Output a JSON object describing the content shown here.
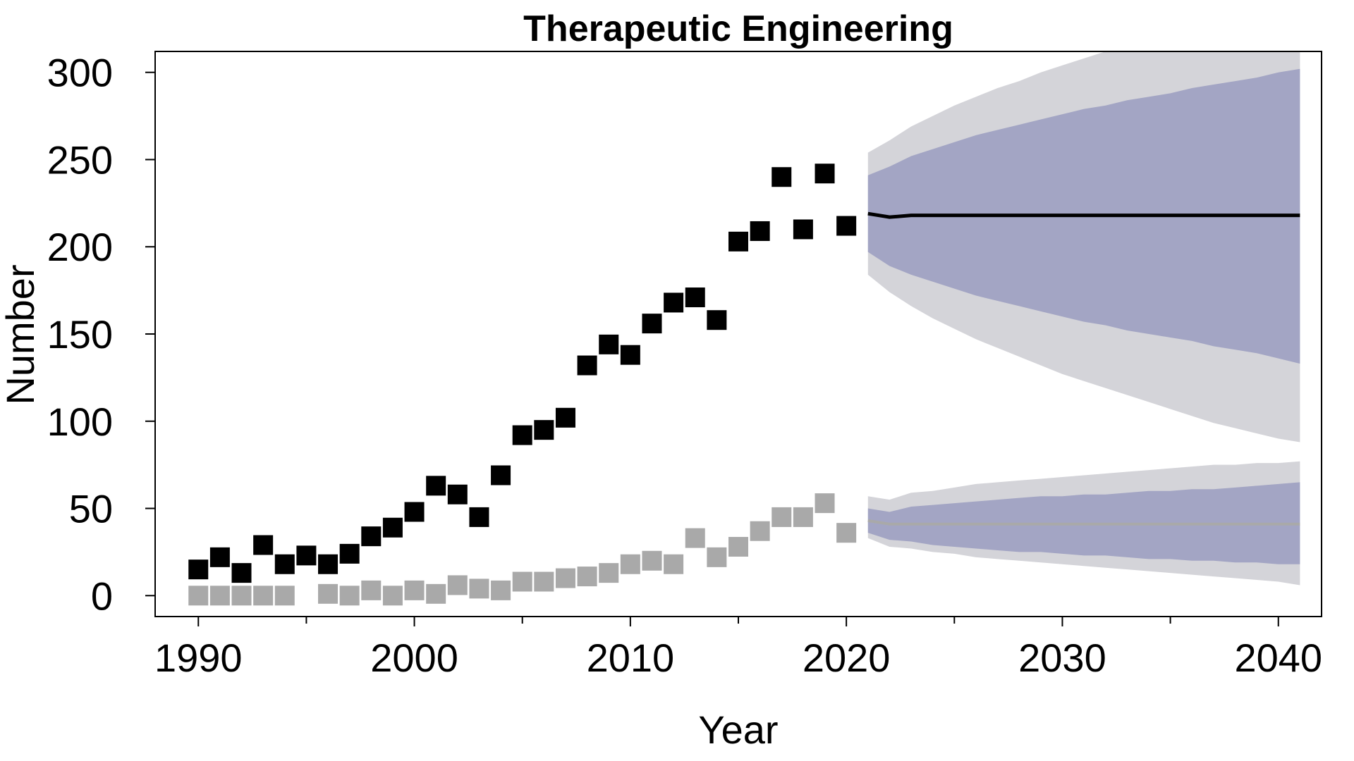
{
  "chart_data": {
    "type": "scatter",
    "title": "Therapeutic Engineering",
    "xlabel": "Year",
    "ylabel": "Number",
    "xlim": [
      1988,
      2042
    ],
    "ylim": [
      -12,
      312
    ],
    "xticks": [
      1990,
      2000,
      2010,
      2020,
      2030,
      2040
    ],
    "xticks_minor": [
      1995,
      2005,
      2015,
      2025,
      2035
    ],
    "yticks": [
      0,
      50,
      100,
      150,
      200,
      250,
      300
    ],
    "grid": false,
    "legend": "none",
    "colors": {
      "series_total": "#000000",
      "series_subset": "#a9a9a9",
      "band_outer": "#d4d4d9",
      "band_inner": "#a3a5c4",
      "forecast_total": "#000000",
      "forecast_subset": "#a9a9a9"
    },
    "series": [
      {
        "marker": "square",
        "color": "#000000",
        "points": [
          [
            1990,
            15
          ],
          [
            1991,
            22
          ],
          [
            1992,
            13
          ],
          [
            1993,
            29
          ],
          [
            1994,
            18
          ],
          [
            1995,
            23
          ],
          [
            1996,
            18
          ],
          [
            1997,
            24
          ],
          [
            1998,
            34
          ],
          [
            1999,
            39
          ],
          [
            2000,
            48
          ],
          [
            2001,
            63
          ],
          [
            2002,
            58
          ],
          [
            2003,
            45
          ],
          [
            2004,
            69
          ],
          [
            2005,
            92
          ],
          [
            2006,
            95
          ],
          [
            2007,
            102
          ],
          [
            2008,
            132
          ],
          [
            2009,
            144
          ],
          [
            2010,
            138
          ],
          [
            2011,
            156
          ],
          [
            2012,
            168
          ],
          [
            2013,
            171
          ],
          [
            2014,
            158
          ],
          [
            2015,
            203
          ],
          [
            2016,
            209
          ],
          [
            2017,
            240
          ],
          [
            2018,
            210
          ],
          [
            2019,
            242
          ],
          [
            2020,
            212
          ]
        ]
      },
      {
        "marker": "square",
        "color": "#a9a9a9",
        "points": [
          [
            1990,
            0
          ],
          [
            1991,
            0
          ],
          [
            1992,
            0
          ],
          [
            1993,
            0
          ],
          [
            1994,
            0
          ],
          [
            1996,
            1
          ],
          [
            1997,
            0
          ],
          [
            1998,
            3
          ],
          [
            1999,
            0
          ],
          [
            2000,
            3
          ],
          [
            2001,
            1
          ],
          [
            2002,
            6
          ],
          [
            2003,
            4
          ],
          [
            2004,
            3
          ],
          [
            2005,
            8
          ],
          [
            2006,
            8
          ],
          [
            2007,
            10
          ],
          [
            2008,
            11
          ],
          [
            2009,
            13
          ],
          [
            2010,
            18
          ],
          [
            2011,
            20
          ],
          [
            2012,
            18
          ],
          [
            2013,
            33
          ],
          [
            2014,
            22
          ],
          [
            2015,
            28
          ],
          [
            2016,
            37
          ],
          [
            2017,
            45
          ],
          [
            2018,
            45
          ],
          [
            2019,
            53
          ],
          [
            2020,
            36
          ]
        ]
      }
    ],
    "forecasts": [
      {
        "line_color": "#000000",
        "x": [
          2021,
          2022,
          2023,
          2024,
          2025,
          2026,
          2027,
          2028,
          2029,
          2030,
          2031,
          2032,
          2033,
          2034,
          2035,
          2036,
          2037,
          2038,
          2039,
          2040,
          2041
        ],
        "mean": [
          219,
          217,
          218,
          218,
          218,
          218,
          218,
          218,
          218,
          218,
          218,
          218,
          218,
          218,
          218,
          218,
          218,
          218,
          218,
          218,
          218
        ],
        "inner_upper": [
          241,
          246,
          252,
          256,
          260,
          264,
          267,
          270,
          273,
          276,
          279,
          281,
          284,
          286,
          288,
          291,
          293,
          295,
          297,
          300,
          302
        ],
        "inner_lower": [
          197,
          189,
          184,
          180,
          176,
          172,
          169,
          166,
          163,
          160,
          157,
          155,
          152,
          150,
          148,
          146,
          143,
          141,
          139,
          136,
          133
        ],
        "outer_upper": [
          254,
          261,
          269,
          275,
          281,
          286,
          291,
          295,
          300,
          304,
          308,
          312,
          315,
          319,
          322,
          325,
          328,
          331,
          334,
          337,
          340
        ],
        "outer_lower": [
          184,
          174,
          166,
          159,
          153,
          147,
          142,
          137,
          132,
          127,
          123,
          119,
          115,
          111,
          107,
          103,
          99,
          96,
          93,
          90,
          88
        ]
      },
      {
        "line_color": "#a9a9a9",
        "x": [
          2021,
          2022,
          2023,
          2024,
          2025,
          2026,
          2027,
          2028,
          2029,
          2030,
          2031,
          2032,
          2033,
          2034,
          2035,
          2036,
          2037,
          2038,
          2039,
          2040,
          2041
        ],
        "mean": [
          43,
          41,
          41,
          41,
          41,
          41,
          41,
          41,
          41,
          41,
          41,
          41,
          41,
          41,
          41,
          41,
          41,
          41,
          41,
          41,
          41
        ],
        "inner_upper": [
          50,
          48,
          51,
          52,
          53,
          54,
          55,
          56,
          57,
          57,
          58,
          58,
          59,
          60,
          60,
          61,
          61,
          62,
          63,
          64,
          65
        ],
        "inner_lower": [
          36,
          32,
          31,
          29,
          28,
          27,
          26,
          25,
          25,
          24,
          23,
          23,
          22,
          21,
          21,
          20,
          20,
          19,
          19,
          18,
          18
        ],
        "outer_upper": [
          57,
          55,
          59,
          60,
          62,
          64,
          65,
          66,
          67,
          68,
          69,
          70,
          71,
          72,
          73,
          74,
          75,
          75,
          76,
          76,
          77
        ],
        "outer_lower": [
          33,
          28,
          27,
          25,
          24,
          22,
          21,
          20,
          19,
          18,
          17,
          16,
          15,
          14,
          13,
          12,
          11,
          10,
          9,
          8,
          6
        ]
      }
    ]
  }
}
